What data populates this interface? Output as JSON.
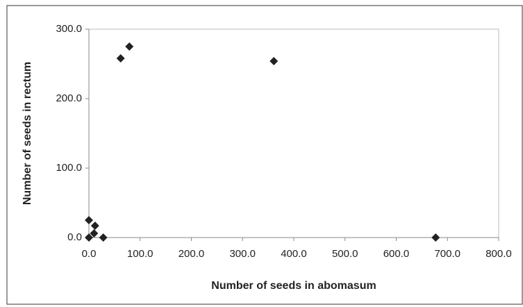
{
  "chart_data": {
    "type": "scatter",
    "xlabel": "Number of seeds in abomasum",
    "ylabel": "Number of seeds in rectum",
    "series": [
      {
        "color": "#222222",
        "x": [
          0,
          0,
          12,
          10,
          28,
          62,
          79,
          361,
          677
        ],
        "values": [
          25,
          0,
          17,
          6,
          0,
          258,
          275,
          254,
          0
        ]
      }
    ],
    "xlim": [
      0,
      800
    ],
    "xticks": [
      {
        "value": 0,
        "label": "0.0"
      },
      {
        "value": 100,
        "label": "100.0"
      },
      {
        "value": 200,
        "label": "200.0"
      },
      {
        "value": 300,
        "label": "300.0"
      },
      {
        "value": 400,
        "label": "400.0"
      },
      {
        "value": 500,
        "label": "500.0"
      },
      {
        "value": 600,
        "label": "600.0"
      },
      {
        "value": 700,
        "label": "700.0"
      },
      {
        "value": 800,
        "label": "800.0"
      }
    ],
    "ylim": [
      0,
      300
    ],
    "yticks": [
      {
        "value": 0,
        "label": "0.0"
      },
      {
        "value": 100,
        "label": "100.0"
      },
      {
        "value": 200,
        "label": "200.0"
      },
      {
        "value": 300,
        "label": "300.0"
      }
    ],
    "grid": false
  }
}
